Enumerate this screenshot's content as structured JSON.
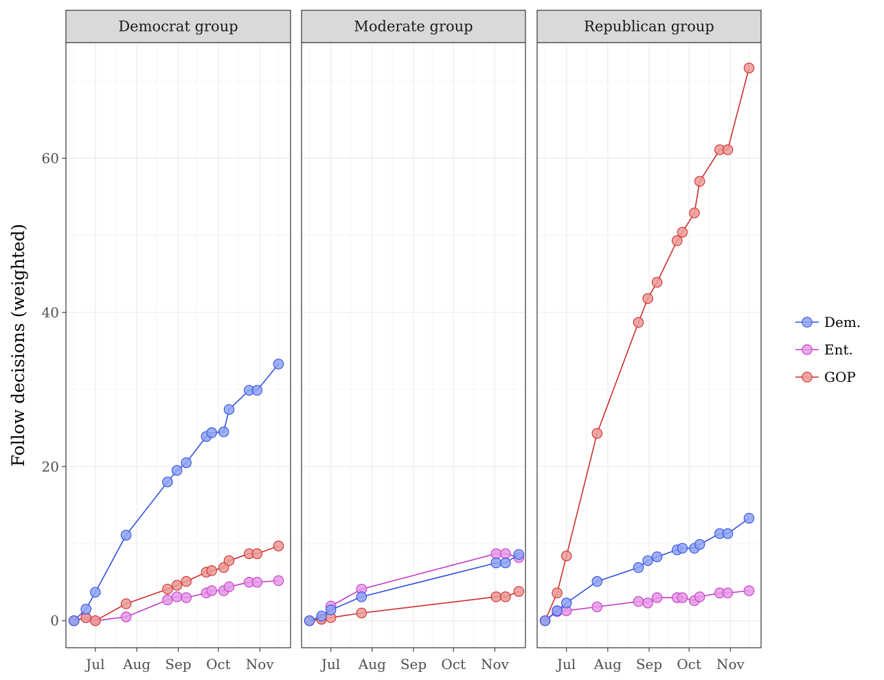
{
  "chart_data": {
    "type": "line",
    "ylabel": "Follow decisions (weighted)",
    "xlabel": "",
    "ylim": [
      -3.5,
      75
    ],
    "y_ticks": [
      0,
      20,
      40,
      60
    ],
    "x_ticks": [
      "Jul",
      "Aug",
      "Sep",
      "Oct",
      "Nov"
    ],
    "grid": true,
    "legend_position": "right",
    "colors": {
      "Dem.": "#2f4fe0",
      "Ent.": "#c23ac9",
      "GOP": "#d12b2b"
    },
    "fill_colors": {
      "Dem.": "#8ea3f5",
      "Ent.": "#e599e6",
      "GOP": "#ec9a95"
    },
    "legend": [
      "Dem.",
      "Ent.",
      "GOP"
    ],
    "panels": [
      {
        "title": "Democrat group",
        "series": [
          {
            "name": "Dem.",
            "x": [
              "2017-06-15",
              "2017-06-24",
              "2017-07-01",
              "2017-07-24",
              "2017-08-24",
              "2017-08-31",
              "2017-09-07",
              "2017-09-22",
              "2017-09-26",
              "2017-10-05",
              "2017-10-09",
              "2017-10-24",
              "2017-10-30",
              "2017-11-15"
            ],
            "y": [
              0,
              1.5,
              3.7,
              11.1,
              18.0,
              19.5,
              20.5,
              23.9,
              24.4,
              24.5,
              27.4,
              29.9,
              29.9,
              33.3
            ]
          },
          {
            "name": "Ent.",
            "x": [
              "2017-06-15",
              "2017-06-24",
              "2017-07-01",
              "2017-07-24",
              "2017-08-24",
              "2017-08-31",
              "2017-09-07",
              "2017-09-22",
              "2017-09-26",
              "2017-10-05",
              "2017-10-09",
              "2017-10-24",
              "2017-10-30",
              "2017-11-15"
            ],
            "y": [
              0,
              0.4,
              0.0,
              0.5,
              2.7,
              3.1,
              3.0,
              3.6,
              3.9,
              3.9,
              4.4,
              5.0,
              5.0,
              5.2
            ]
          },
          {
            "name": "GOP",
            "x": [
              "2017-06-15",
              "2017-06-24",
              "2017-07-01",
              "2017-07-24",
              "2017-08-24",
              "2017-08-31",
              "2017-09-07",
              "2017-09-22",
              "2017-09-26",
              "2017-10-05",
              "2017-10-09",
              "2017-10-24",
              "2017-10-30",
              "2017-11-15"
            ],
            "y": [
              0,
              0.4,
              0.0,
              2.2,
              4.1,
              4.6,
              5.1,
              6.3,
              6.5,
              6.9,
              7.8,
              8.7,
              8.7,
              9.7
            ]
          }
        ]
      },
      {
        "title": "Moderate group",
        "series": [
          {
            "name": "Dem.",
            "x": [
              "2017-06-15",
              "2017-06-24",
              "2017-07-01",
              "2017-07-24",
              "2017-11-02",
              "2017-11-09",
              "2017-11-19"
            ],
            "y": [
              0,
              0.6,
              1.4,
              3.1,
              7.5,
              7.5,
              8.6
            ]
          },
          {
            "name": "Ent.",
            "x": [
              "2017-06-15",
              "2017-06-24",
              "2017-07-01",
              "2017-07-24",
              "2017-11-02",
              "2017-11-09",
              "2017-11-19"
            ],
            "y": [
              0,
              0.2,
              1.9,
              4.1,
              8.7,
              8.7,
              8.2
            ]
          },
          {
            "name": "GOP",
            "x": [
              "2017-06-15",
              "2017-06-24",
              "2017-07-01",
              "2017-07-24",
              "2017-11-02",
              "2017-11-09",
              "2017-11-19"
            ],
            "y": [
              0,
              0.2,
              0.4,
              1.0,
              3.1,
              3.1,
              3.8
            ]
          }
        ]
      },
      {
        "title": "Republican group",
        "series": [
          {
            "name": "Dem.",
            "x": [
              "2017-06-15",
              "2017-06-24",
              "2017-07-01",
              "2017-07-24",
              "2017-08-24",
              "2017-08-31",
              "2017-09-07",
              "2017-09-22",
              "2017-09-26",
              "2017-10-05",
              "2017-10-09",
              "2017-10-24",
              "2017-10-30",
              "2017-11-15"
            ],
            "y": [
              0,
              1.3,
              2.3,
              5.1,
              6.9,
              7.8,
              8.3,
              9.2,
              9.4,
              9.4,
              9.9,
              11.3,
              11.3,
              13.3
            ]
          },
          {
            "name": "Ent.",
            "x": [
              "2017-06-15",
              "2017-06-24",
              "2017-07-01",
              "2017-07-24",
              "2017-08-24",
              "2017-08-31",
              "2017-09-07",
              "2017-09-22",
              "2017-09-26",
              "2017-10-05",
              "2017-10-09",
              "2017-10-24",
              "2017-10-30",
              "2017-11-15"
            ],
            "y": [
              0,
              1.2,
              1.3,
              1.8,
              2.5,
              2.3,
              3.0,
              3.0,
              3.0,
              2.6,
              3.1,
              3.6,
              3.6,
              3.9
            ]
          },
          {
            "name": "GOP",
            "x": [
              "2017-06-15",
              "2017-06-24",
              "2017-07-01",
              "2017-07-24",
              "2017-08-24",
              "2017-08-31",
              "2017-09-07",
              "2017-09-22",
              "2017-09-26",
              "2017-10-05",
              "2017-10-09",
              "2017-10-24",
              "2017-10-30",
              "2017-11-15"
            ],
            "y": [
              0,
              3.6,
              8.4,
              24.3,
              38.7,
              41.8,
              43.9,
              49.3,
              50.4,
              52.9,
              57.0,
              61.1,
              61.1,
              71.7
            ]
          }
        ]
      }
    ]
  }
}
